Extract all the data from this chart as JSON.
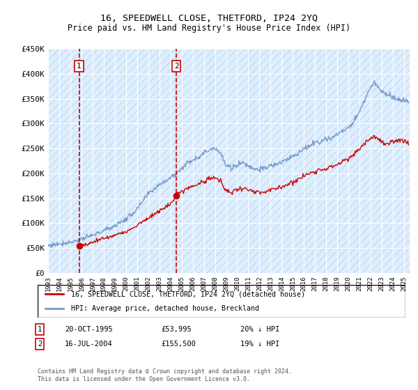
{
  "title": "16, SPEEDWELL CLOSE, THETFORD, IP24 2YQ",
  "subtitle": "Price paid vs. HM Land Registry's House Price Index (HPI)",
  "ylim": [
    0,
    450000
  ],
  "yticks": [
    0,
    50000,
    100000,
    150000,
    200000,
    250000,
    300000,
    350000,
    400000,
    450000
  ],
  "ytick_labels": [
    "£0",
    "£50K",
    "£100K",
    "£150K",
    "£200K",
    "£250K",
    "£300K",
    "£350K",
    "£400K",
    "£450K"
  ],
  "hpi_color": "#7799cc",
  "price_color": "#cc0000",
  "dashed_line_color": "#cc0000",
  "background_color": "#ddeeff",
  "grid_color": "#ffffff",
  "transaction1_date": "20-OCT-1995",
  "transaction1_price": 53995,
  "transaction1_hpi_diff": "20% ↓ HPI",
  "transaction2_date": "16-JUL-2004",
  "transaction2_price": 155500,
  "transaction2_hpi_diff": "19% ↓ HPI",
  "legend_label_red": "16, SPEEDWELL CLOSE, THETFORD, IP24 2YQ (detached house)",
  "legend_label_blue": "HPI: Average price, detached house, Breckland",
  "footnote": "Contains HM Land Registry data © Crown copyright and database right 2024.\nThis data is licensed under the Open Government Licence v3.0.",
  "marker1_x": 1995.79,
  "marker1_y": 53995,
  "marker2_x": 2004.54,
  "marker2_y": 155500,
  "dashed1_x": 1995.79,
  "dashed2_x": 2004.54,
  "xlim_left": 1993,
  "xlim_right": 2025.5
}
